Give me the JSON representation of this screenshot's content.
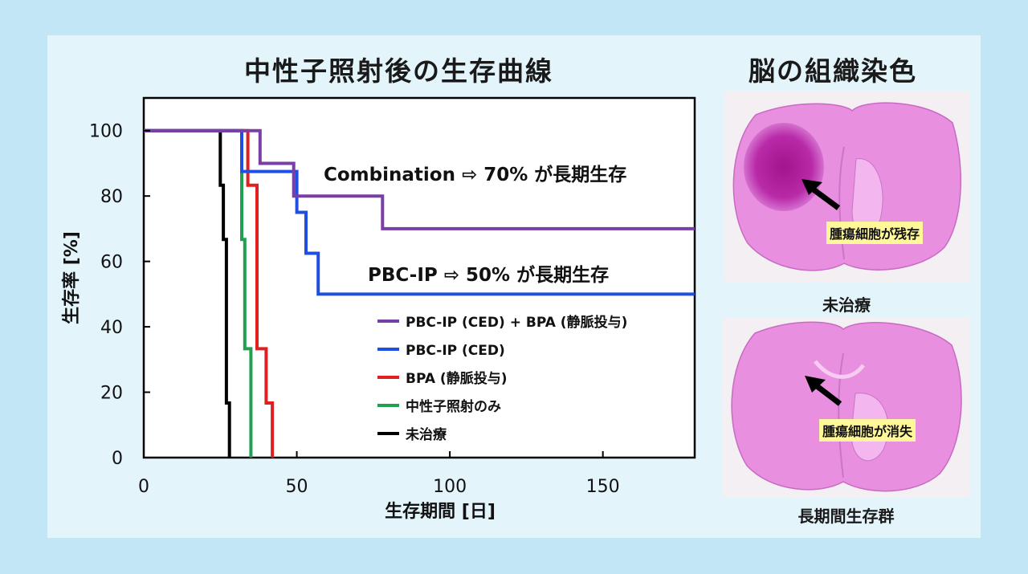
{
  "panel_bg": "#e3f4fb",
  "page_bg": "#c3e6f7",
  "chart_title": "中性子照射後の生存曲線",
  "tissue_title": "脳の組織染色",
  "annotations": {
    "combination": "Combination ⇨ 70% が長期生存",
    "pbcip": "PBC-IP ⇨ 50% が長期生存"
  },
  "chart_data": {
    "type": "line",
    "xlabel": "生存期間 [日]",
    "ylabel": "生存率 [%]",
    "xlim": [
      0,
      180
    ],
    "ylim": [
      0,
      110
    ],
    "xticks": [
      0,
      50,
      100,
      150
    ],
    "yticks": [
      0,
      20,
      40,
      60,
      80,
      100
    ],
    "grid": false,
    "legend_position": "bottom-right",
    "series": [
      {
        "name": "PBC-IP (CED) + BPA (静脈投与)",
        "color": "#7a3fa6",
        "steps": [
          [
            0,
            100
          ],
          [
            38,
            100
          ],
          [
            38,
            90
          ],
          [
            49,
            90
          ],
          [
            49,
            80
          ],
          [
            78,
            80
          ],
          [
            78,
            70
          ],
          [
            180,
            70
          ]
        ]
      },
      {
        "name": "PBC-IP (CED)",
        "color": "#1f4fe0",
        "steps": [
          [
            0,
            100
          ],
          [
            32,
            100
          ],
          [
            32,
            87.5
          ],
          [
            50,
            87.5
          ],
          [
            50,
            75
          ],
          [
            53,
            75
          ],
          [
            53,
            62.5
          ],
          [
            57,
            62.5
          ],
          [
            57,
            50
          ],
          [
            180,
            50
          ]
        ]
      },
      {
        "name": "BPA (静脈投与)",
        "color": "#e02020",
        "steps": [
          [
            0,
            100
          ],
          [
            34,
            100
          ],
          [
            34,
            83.3
          ],
          [
            37,
            83.3
          ],
          [
            37,
            33.3
          ],
          [
            40,
            33.3
          ],
          [
            40,
            16.7
          ],
          [
            42,
            16.7
          ],
          [
            42,
            0
          ]
        ]
      },
      {
        "name": "中性子照射のみ",
        "color": "#20a050",
        "steps": [
          [
            0,
            100
          ],
          [
            32,
            100
          ],
          [
            32,
            66.7
          ],
          [
            33,
            66.7
          ],
          [
            33,
            33.3
          ],
          [
            35,
            33.3
          ],
          [
            35,
            0
          ]
        ]
      },
      {
        "name": "未治療",
        "color": "#000000",
        "steps": [
          [
            0,
            100
          ],
          [
            25,
            100
          ],
          [
            25,
            83.3
          ],
          [
            26,
            83.3
          ],
          [
            26,
            66.7
          ],
          [
            27,
            66.7
          ],
          [
            27,
            16.7
          ],
          [
            28,
            16.7
          ],
          [
            28,
            0
          ]
        ]
      }
    ]
  },
  "brains": {
    "untreated": {
      "label": "未治療",
      "callout": "腫瘍細胞が残存"
    },
    "long_term": {
      "label": "長期間生存群",
      "callout": "腫瘍細胞が消失"
    }
  }
}
